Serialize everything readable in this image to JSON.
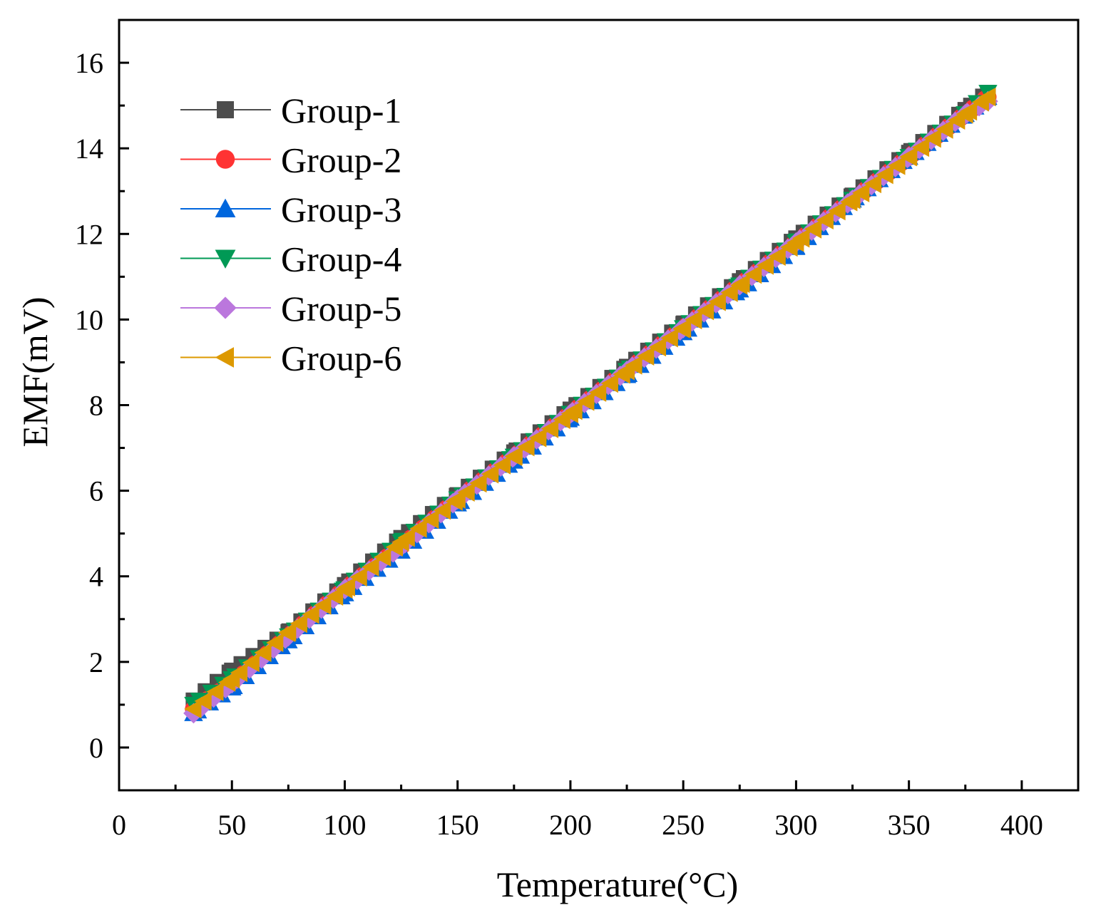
{
  "chart_data": {
    "type": "line",
    "title": "",
    "xlabel": "Temperature(°C)",
    "ylabel": "EMF(mV)",
    "xlim": [
      0,
      425
    ],
    "ylim": [
      -1,
      17
    ],
    "xticks": [
      0,
      50,
      100,
      150,
      200,
      250,
      300,
      350,
      400
    ],
    "xtick_labels": [
      "0",
      "50",
      "100",
      "150",
      "200",
      "250",
      "300",
      "350",
      "400"
    ],
    "yticks": [
      0,
      2,
      4,
      6,
      8,
      10,
      12,
      14,
      16
    ],
    "ytick_labels": [
      "0",
      "2",
      "4",
      "6",
      "8",
      "10",
      "12",
      "14",
      "16"
    ],
    "legend_position": "top-left",
    "grid": false,
    "series": [
      {
        "name": "Group-1",
        "color": "#4d4d4d",
        "marker": "square",
        "x": [
          33,
          50,
          75,
          100,
          125,
          150,
          175,
          200,
          225,
          250,
          275,
          300,
          325,
          350,
          375,
          385
        ],
        "y": [
          1.1,
          1.8,
          2.7,
          3.8,
          4.9,
          5.9,
          6.9,
          7.9,
          8.9,
          9.9,
          10.9,
          11.9,
          12.9,
          13.9,
          14.9,
          15.3
        ]
      },
      {
        "name": "Group-2",
        "color": "#ff3333",
        "marker": "circle",
        "x": [
          33,
          50,
          75,
          100,
          125,
          150,
          175,
          200,
          225,
          250,
          275,
          300,
          325,
          350,
          375,
          385
        ],
        "y": [
          0.9,
          1.5,
          2.6,
          3.7,
          4.7,
          5.8,
          6.8,
          7.8,
          8.8,
          9.8,
          10.8,
          11.8,
          12.8,
          13.8,
          14.8,
          15.2
        ]
      },
      {
        "name": "Group-3",
        "color": "#0066dd",
        "marker": "triangle-up",
        "x": [
          33,
          50,
          75,
          100,
          125,
          150,
          175,
          200,
          225,
          250,
          275,
          300,
          325,
          350,
          375,
          385
        ],
        "y": [
          0.8,
          1.4,
          2.5,
          3.6,
          4.6,
          5.7,
          6.7,
          7.7,
          8.7,
          9.7,
          10.7,
          11.7,
          12.8,
          13.8,
          14.8,
          15.2
        ]
      },
      {
        "name": "Group-4",
        "color": "#009955",
        "marker": "triangle-down",
        "x": [
          33,
          50,
          75,
          100,
          125,
          150,
          175,
          200,
          225,
          250,
          275,
          300,
          325,
          350,
          375,
          385
        ],
        "y": [
          1.0,
          1.6,
          2.6,
          3.7,
          4.8,
          5.8,
          6.8,
          7.8,
          8.8,
          9.8,
          10.8,
          11.8,
          12.8,
          13.8,
          14.8,
          15.3
        ]
      },
      {
        "name": "Group-5",
        "color": "#bb77dd",
        "marker": "diamond",
        "x": [
          33,
          50,
          75,
          100,
          125,
          150,
          175,
          200,
          225,
          250,
          275,
          300,
          325,
          350,
          375,
          385
        ],
        "y": [
          0.8,
          1.5,
          2.6,
          3.7,
          4.7,
          5.8,
          6.8,
          7.8,
          8.8,
          9.8,
          10.8,
          11.8,
          12.8,
          13.8,
          14.8,
          15.1
        ]
      },
      {
        "name": "Group-6",
        "color": "#dd9900",
        "marker": "triangle-left",
        "x": [
          33,
          50,
          75,
          100,
          125,
          150,
          175,
          200,
          225,
          250,
          275,
          300,
          325,
          350,
          375,
          385
        ],
        "y": [
          0.9,
          1.6,
          2.7,
          3.7,
          4.8,
          5.8,
          6.8,
          7.8,
          8.8,
          9.8,
          10.8,
          11.8,
          12.8,
          13.8,
          14.8,
          15.2
        ]
      }
    ]
  }
}
